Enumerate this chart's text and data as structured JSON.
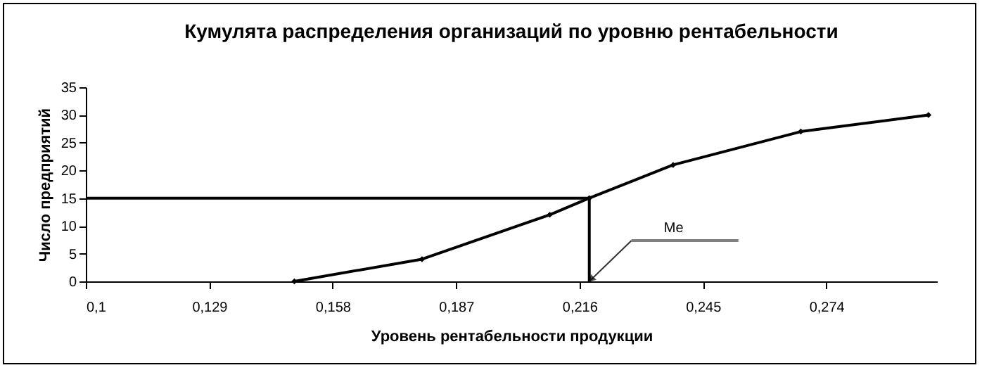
{
  "chart_data": {
    "type": "line",
    "title": "Кумулята распределения организаций по уровню рентабельности",
    "xlabel": "Уровень рентабельности продукции",
    "ylabel": "Число предприятий",
    "x": [
      0.149,
      0.179,
      0.209,
      0.2183,
      0.238,
      0.268,
      0.298
    ],
    "series": [
      {
        "color": "#000000",
        "values": [
          0,
          4,
          12,
          15,
          21,
          27,
          30
        ]
      }
    ],
    "xlim": [
      0.1,
      0.3
    ],
    "xticks": [
      {
        "value": 0.1,
        "label": "0,1"
      },
      {
        "value": 0.129,
        "label": "0,129"
      },
      {
        "value": 0.158,
        "label": "0,158"
      },
      {
        "value": 0.187,
        "label": "0,187"
      },
      {
        "value": 0.216,
        "label": "0,216"
      },
      {
        "value": 0.245,
        "label": "0,245"
      },
      {
        "value": 0.274,
        "label": "0,274"
      }
    ],
    "ylim": [
      0,
      35
    ],
    "yticks": [
      0,
      5,
      10,
      15,
      20,
      25,
      30,
      35
    ],
    "ref_lines": [
      {
        "axis": "y",
        "value": 15,
        "color": "#000000"
      },
      {
        "axis": "x",
        "value": 0.2183,
        "color": "#000000",
        "label": "Me"
      }
    ],
    "marker": "diamond",
    "line_style": "solid",
    "grid": false
  }
}
